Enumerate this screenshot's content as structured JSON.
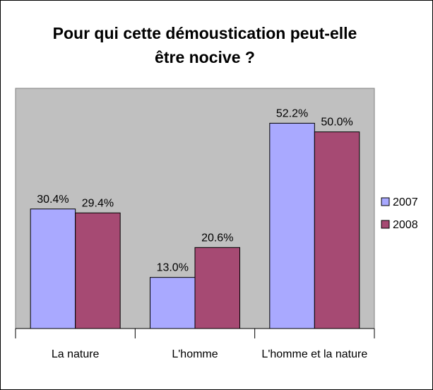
{
  "chart_data": {
    "type": "bar",
    "title": "Pour qui cette démoustication peut-elle être nocive ?",
    "categories": [
      "La nature",
      "L'homme",
      "L'homme et la nature"
    ],
    "series": [
      {
        "name": "2007",
        "color": "#a9a9ff",
        "values": [
          30.4,
          13.0,
          52.2
        ],
        "value_labels": [
          "30.4%",
          "13.0%",
          "52.2%"
        ]
      },
      {
        "name": "2008",
        "color": "#a64a73",
        "values": [
          29.4,
          20.6,
          50.0
        ],
        "value_labels": [
          "29.4%",
          "20.6%",
          "50.0%"
        ]
      }
    ],
    "ylim": [
      0,
      60
    ],
    "grid": false,
    "legend": "right"
  }
}
